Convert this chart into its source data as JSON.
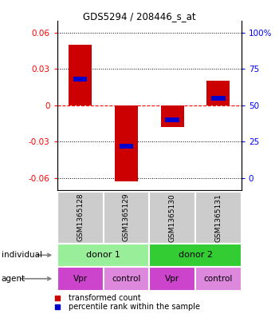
{
  "title": "GDS5294 / 208446_s_at",
  "samples": [
    "GSM1365128",
    "GSM1365129",
    "GSM1365130",
    "GSM1365131"
  ],
  "transformed_counts": [
    0.05,
    -0.063,
    -0.018,
    0.02
  ],
  "percentile_ranks": [
    0.68,
    0.22,
    0.4,
    0.55
  ],
  "ylim": [
    -0.07,
    0.07
  ],
  "yticks_left": [
    -0.06,
    -0.03,
    0.0,
    0.03,
    0.06
  ],
  "ytick_labels_left": [
    "-0.06",
    "-0.03",
    "0",
    "0.03",
    "0.06"
  ],
  "right_tick_positions": [
    -0.06,
    -0.03,
    0.0,
    0.03,
    0.06
  ],
  "ytick_labels_right": [
    "0",
    "25",
    "50",
    "75",
    "100%"
  ],
  "individuals": [
    [
      "donor 1",
      0,
      2
    ],
    [
      "donor 2",
      2,
      4
    ]
  ],
  "agents": [
    "Vpr",
    "control",
    "Vpr",
    "control"
  ],
  "bar_color_red": "#cc0000",
  "bar_color_blue": "#0000cc",
  "individual_colors": [
    "#99ee99",
    "#33cc33"
  ],
  "agent_color_dark": "#cc44cc",
  "agent_color_light": "#dd88dd",
  "sample_bg_color": "#cccccc",
  "bar_width": 0.5,
  "blue_bar_width": 0.3,
  "blue_bar_height": 0.004
}
